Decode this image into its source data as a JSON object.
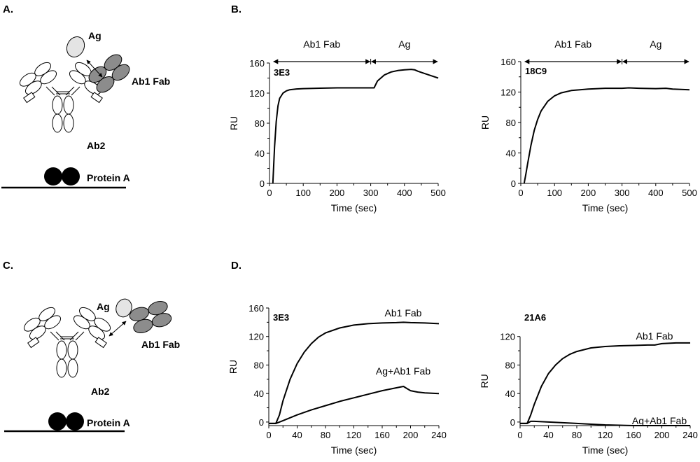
{
  "panel_labels": {
    "a": "A.",
    "b": "B.",
    "c": "C.",
    "d": "D."
  },
  "diagram_a": {
    "ag": "Ag",
    "ab1": "Ab1 Fab",
    "ab2": "Ab2",
    "protein_a": "Protein A"
  },
  "diagram_c": {
    "ag": "Ag",
    "ab1": "Ab1 Fab",
    "ab2": "Ab2",
    "protein_a": "Protein A"
  },
  "colors": {
    "antigen": "#e4e4e4",
    "fab": "#8c8c8c",
    "protein_a": "#000000",
    "ab2": "#ffffff",
    "line": "#000000"
  },
  "chart_data": [
    {
      "type": "line",
      "title": "3E3",
      "xlabel": "Time (sec)",
      "ylabel": "RU",
      "xlim": [
        0,
        500
      ],
      "ylim": [
        0,
        160
      ],
      "xticks": [
        0,
        100,
        200,
        300,
        400,
        500
      ],
      "yticks": [
        0,
        40,
        80,
        120,
        160
      ],
      "phases": [
        {
          "label": "Ab1 Fab",
          "start": 10,
          "end": 300
        },
        {
          "label": "Ag",
          "start": 300,
          "end": 500
        }
      ],
      "series": [
        {
          "x": [
            10,
            12,
            15,
            20,
            25,
            30,
            40,
            50,
            60,
            80,
            100,
            150,
            200,
            250,
            310,
            320,
            340,
            360,
            380,
            400,
            420,
            430,
            440,
            460,
            480,
            500
          ],
          "y": [
            0,
            20,
            48,
            82,
            103,
            113,
            120,
            123,
            124.5,
            125.5,
            126,
            126.5,
            127,
            127,
            127,
            136,
            144,
            148,
            150,
            151,
            151.5,
            151,
            149,
            146,
            143,
            140
          ]
        }
      ]
    },
    {
      "type": "line",
      "title": "18C9",
      "xlabel": "Time (sec)",
      "ylabel": "RU",
      "xlim": [
        0,
        500
      ],
      "ylim": [
        0,
        160
      ],
      "xticks": [
        0,
        100,
        200,
        300,
        400,
        500
      ],
      "yticks": [
        0,
        40,
        80,
        120,
        160
      ],
      "phases": [
        {
          "label": "Ab1 Fab",
          "start": 10,
          "end": 300
        },
        {
          "label": "Ag",
          "start": 300,
          "end": 500
        }
      ],
      "series": [
        {
          "x": [
            10,
            15,
            20,
            30,
            40,
            50,
            60,
            80,
            100,
            120,
            150,
            200,
            250,
            300,
            320,
            350,
            400,
            430,
            450,
            500
          ],
          "y": [
            0,
            12,
            25,
            50,
            70,
            84,
            95,
            108,
            115,
            119,
            122,
            124,
            125,
            125,
            125.5,
            125,
            124.5,
            125,
            124,
            123
          ]
        }
      ]
    },
    {
      "type": "line",
      "title": "3E3",
      "xlabel": "Time (sec)",
      "ylabel": "RU",
      "xlim": [
        0,
        240
      ],
      "ylim": [
        -5,
        160
      ],
      "xticks": [
        0,
        40,
        80,
        120,
        160,
        200,
        240
      ],
      "yticks": [
        0,
        40,
        80,
        120,
        160
      ],
      "series": [
        {
          "name": "Ab1 Fab",
          "x": [
            0,
            10,
            15,
            20,
            30,
            40,
            50,
            60,
            70,
            80,
            100,
            120,
            140,
            160,
            180,
            190,
            200,
            220,
            240
          ],
          "y": [
            -2,
            -2,
            10,
            30,
            60,
            82,
            98,
            110,
            119,
            125,
            132,
            136,
            138,
            139,
            139.5,
            140,
            139.5,
            139,
            138
          ]
        },
        {
          "name": "Ag+Ab1 Fab",
          "x": [
            0,
            10,
            15,
            20,
            30,
            40,
            60,
            80,
            100,
            120,
            140,
            160,
            180,
            190,
            195,
            200,
            210,
            220,
            240
          ],
          "y": [
            -2,
            -2,
            0,
            2,
            6,
            10,
            17,
            23,
            29,
            34,
            39,
            44,
            48,
            50,
            47,
            44,
            42,
            41,
            40
          ]
        }
      ]
    },
    {
      "type": "line",
      "title": "21A6",
      "xlabel": "Time (sec)",
      "ylabel": "RU",
      "xlim": [
        0,
        240
      ],
      "ylim": [
        -5,
        160
      ],
      "xticks": [
        0,
        40,
        80,
        120,
        160,
        200,
        240
      ],
      "yticks": [
        0,
        40,
        80,
        120
      ],
      "series": [
        {
          "name": "Ab1 Fab",
          "x": [
            0,
            10,
            15,
            20,
            30,
            40,
            50,
            60,
            70,
            80,
            100,
            120,
            140,
            160,
            180,
            190,
            200,
            220,
            240
          ],
          "y": [
            -2,
            -2,
            10,
            25,
            50,
            68,
            80,
            89,
            95,
            99,
            104,
            106,
            107,
            107.5,
            108,
            108,
            110,
            111,
            111
          ]
        },
        {
          "name": "Ag+Ab1 Fab",
          "x": [
            0,
            10,
            15,
            20,
            40,
            60,
            80,
            100,
            120,
            140,
            160,
            180,
            190,
            200,
            220,
            240
          ],
          "y": [
            -2,
            -2,
            1,
            1,
            0,
            -1,
            -2,
            -3,
            -4,
            -4.5,
            -5,
            -5,
            -5,
            -5,
            -5,
            -5
          ]
        }
      ]
    }
  ]
}
